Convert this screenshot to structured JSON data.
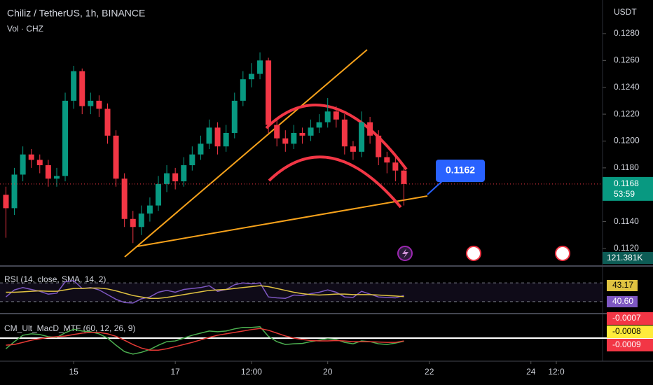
{
  "chart_data": {
    "type": "candlestick",
    "title": "Chiliz / TetherUS, 1h, BINANCE",
    "subtitle": "Vol · CHZ",
    "y_axis_label": "USDT",
    "up_color": "#089981",
    "down_color": "#f23645",
    "x": [
      13.667,
      13.833,
      14,
      14.167,
      14.333,
      14.5,
      14.667,
      14.833,
      15,
      15.167,
      15.333,
      15.5,
      15.667,
      15.833,
      16,
      16.167,
      16.333,
      16.5,
      16.667,
      16.833,
      17,
      17.167,
      17.333,
      17.5,
      17.667,
      17.833,
      18,
      18.167,
      18.333,
      18.5,
      18.667,
      18.833,
      19,
      19.167,
      19.333,
      19.5,
      19.667,
      19.833,
      20,
      20.167,
      20.333,
      20.5,
      20.667,
      20.833,
      21,
      21.167,
      21.333,
      21.5
    ],
    "open": [
      0.116,
      0.115,
      0.1175,
      0.119,
      0.1186,
      0.1182,
      0.1172,
      0.1174,
      0.123,
      0.1252,
      0.1226,
      0.123,
      0.1224,
      0.1204,
      0.1172,
      0.1142,
      0.1136,
      0.1146,
      0.1152,
      0.1168,
      0.1176,
      0.117,
      0.1182,
      0.119,
      0.1198,
      0.121,
      0.1196,
      0.1206,
      0.123,
      0.1246,
      0.125,
      0.126,
      0.1212,
      0.1202,
      0.1198,
      0.1206,
      0.1204,
      0.121,
      0.1214,
      0.1222,
      0.1216,
      0.1196,
      0.1192,
      0.1214,
      0.1204,
      0.1188,
      0.1184,
      0.1178
    ],
    "high": [
      0.1166,
      0.118,
      0.1196,
      0.1194,
      0.119,
      0.1186,
      0.118,
      0.1236,
      0.1256,
      0.1254,
      0.1236,
      0.1234,
      0.1228,
      0.1208,
      0.1176,
      0.1148,
      0.1152,
      0.1158,
      0.1174,
      0.1182,
      0.118,
      0.1188,
      0.1196,
      0.1204,
      0.1216,
      0.1214,
      0.1212,
      0.1236,
      0.1252,
      0.1258,
      0.1266,
      0.1262,
      0.1216,
      0.1208,
      0.1212,
      0.121,
      0.1216,
      0.122,
      0.1232,
      0.1226,
      0.122,
      0.12,
      0.1222,
      0.1218,
      0.1208,
      0.1192,
      0.119,
      0.1182
    ],
    "low": [
      0.1128,
      0.1145,
      0.117,
      0.118,
      0.1176,
      0.1166,
      0.1166,
      0.117,
      0.1224,
      0.122,
      0.122,
      0.1218,
      0.1198,
      0.1166,
      0.1136,
      0.1124,
      0.113,
      0.114,
      0.1148,
      0.1162,
      0.1164,
      0.1166,
      0.1178,
      0.1186,
      0.1194,
      0.119,
      0.1192,
      0.1202,
      0.1226,
      0.124,
      0.1246,
      0.1206,
      0.1196,
      0.1192,
      0.1194,
      0.1198,
      0.12,
      0.1206,
      0.121,
      0.121,
      0.119,
      0.1186,
      0.1188,
      0.1198,
      0.1182,
      0.1176,
      0.117,
      0.1152
    ],
    "close": [
      0.115,
      0.1175,
      0.119,
      0.1186,
      0.1182,
      0.1172,
      0.1174,
      0.123,
      0.1252,
      0.1226,
      0.123,
      0.1224,
      0.1204,
      0.1172,
      0.1142,
      0.1136,
      0.1146,
      0.1152,
      0.1168,
      0.1176,
      0.117,
      0.1182,
      0.119,
      0.1198,
      0.121,
      0.1196,
      0.1206,
      0.123,
      0.1246,
      0.125,
      0.126,
      0.1212,
      0.1202,
      0.1198,
      0.1206,
      0.1204,
      0.121,
      0.1214,
      0.1222,
      0.1216,
      0.1196,
      0.1192,
      0.1214,
      0.1204,
      0.1188,
      0.1184,
      0.1178,
      0.1168
    ],
    "xlim": [
      13.55,
      25.41
    ],
    "xticks": [
      15,
      17,
      {
        "value": 18.5,
        "label": "12:00"
      },
      20,
      22,
      24,
      {
        "value": 24.5,
        "label": "12:0"
      }
    ],
    "ylim": [
      0.1108,
      0.1305
    ],
    "yticks": [
      {
        "value": 0.112,
        "label": "0.1120"
      },
      {
        "value": 0.114,
        "label": "0.1140"
      },
      {
        "value": 0.116,
        "label": "0.1160"
      },
      {
        "value": 0.118,
        "label": "0.1180"
      },
      {
        "value": 0.12,
        "label": "0.1200"
      },
      {
        "value": 0.122,
        "label": "0.1220"
      },
      {
        "value": 0.124,
        "label": "0.1240"
      },
      {
        "value": 0.126,
        "label": "0.1260"
      },
      {
        "value": 0.128,
        "label": "0.1280"
      }
    ],
    "last_price": 0.1168,
    "countdown": "53:59",
    "annotation": 0.1162,
    "volume_label": "121.381K",
    "rsi": {
      "title": "RSI (14, close, SMA, 14, 2)",
      "color": "#7e57c2",
      "ma_color": "#e0c341",
      "ylim": [
        0,
        100
      ],
      "levels": [
        70,
        30
      ],
      "values": [
        40,
        55,
        60,
        56,
        52,
        46,
        48,
        72,
        75,
        58,
        60,
        55,
        45,
        35,
        28,
        27,
        36,
        40,
        50,
        54,
        50,
        56,
        58,
        60,
        64,
        52,
        56,
        66,
        70,
        68,
        70,
        40,
        38,
        37,
        44,
        43,
        47,
        50,
        55,
        50,
        40,
        39,
        52,
        46,
        40,
        39,
        38,
        43.17
      ],
      "ma": [
        50,
        50,
        51,
        52,
        53,
        52,
        52,
        55,
        58,
        58,
        59,
        59,
        57,
        53,
        48,
        43,
        40,
        37,
        37,
        39,
        42,
        45,
        48,
        51,
        54,
        55,
        56,
        58,
        60,
        62,
        64,
        62,
        58,
        54,
        50,
        47,
        45,
        44,
        45,
        46,
        46,
        45,
        45,
        45,
        44,
        43,
        42,
        40.6
      ],
      "last_labels": [
        43.17,
        {
          "value": 40.6,
          "label": "40.60"
        }
      ]
    },
    "macd": {
      "title": "CM_Ult_MacD_MTF (60, 12, 26, 9)",
      "color": "#4caf50",
      "signal_color": "#e53935",
      "ylim": [
        -0.0065,
        0.0065
      ],
      "values": [
        -0.003,
        -0.001,
        0.0008,
        0.0012,
        0.001,
        0.0004,
        0.0002,
        0.0015,
        0.0025,
        0.002,
        0.0018,
        0.0012,
        0.0,
        -0.002,
        -0.0038,
        -0.0045,
        -0.004,
        -0.0032,
        -0.002,
        -0.001,
        -0.0008,
        0.0,
        0.0008,
        0.0014,
        0.002,
        0.0018,
        0.002,
        0.0026,
        0.003,
        0.003,
        0.0032,
        0.0005,
        -0.001,
        -0.0018,
        -0.0016,
        -0.0015,
        -0.001,
        -0.0006,
        -0.0002,
        -0.0004,
        -0.0012,
        -0.0016,
        -0.0008,
        -0.001,
        -0.0016,
        -0.0018,
        -0.0014,
        -0.0009
      ],
      "signal": [
        -0.002,
        -0.0018,
        -0.0012,
        -0.0006,
        -0.0002,
        0.0002,
        0.0004,
        0.0006,
        0.001,
        0.0014,
        0.0016,
        0.0016,
        0.0012,
        0.0005,
        -0.0006,
        -0.0018,
        -0.0028,
        -0.0034,
        -0.0034,
        -0.003,
        -0.0024,
        -0.0018,
        -0.0012,
        -0.0005,
        0.0002,
        0.0008,
        0.0012,
        0.0016,
        0.002,
        0.0024,
        0.0027,
        0.0022,
        0.0014,
        0.0006,
        0.0,
        -0.0004,
        -0.0007,
        -0.0008,
        -0.0008,
        -0.0007,
        -0.0008,
        -0.001,
        -0.001,
        -0.001,
        -0.0011,
        -0.0012,
        -0.0012,
        -0.0008
      ],
      "last_labels": [
        -0.0007,
        -0.0008,
        -0.0009
      ]
    }
  }
}
